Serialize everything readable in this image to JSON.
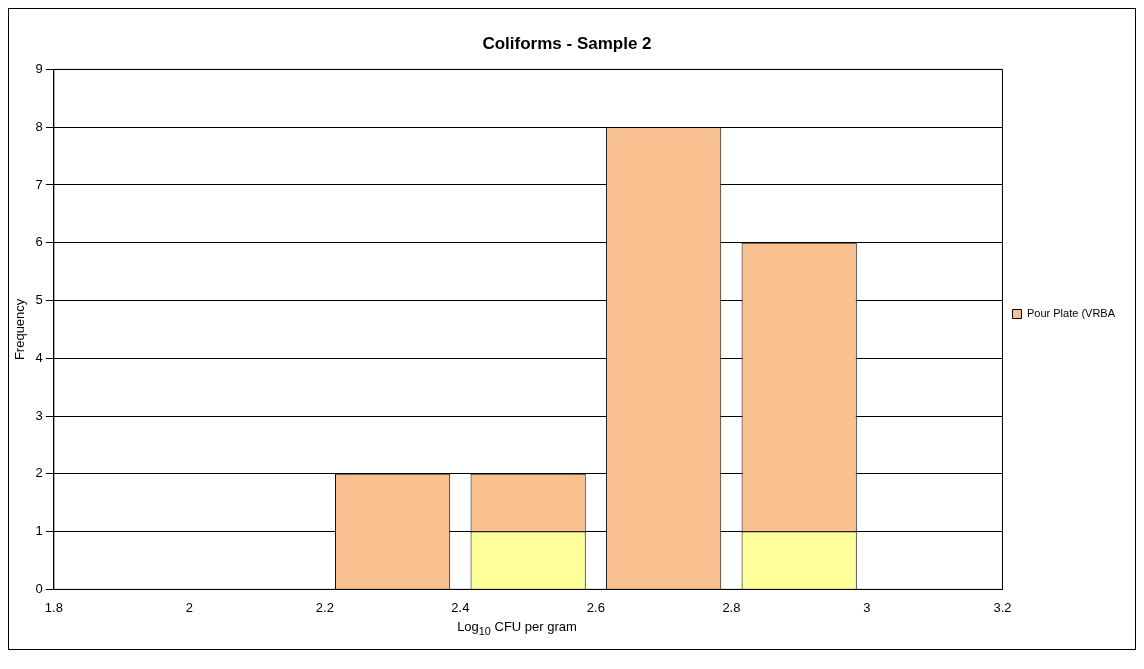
{
  "chart_data": {
    "type": "bar",
    "title": "Coliforms - Sample 2",
    "xlabel": "Log$_{10}$ CFU per gram",
    "ylabel": "Frequency",
    "x": [
      2.3,
      2.5,
      2.7,
      2.9
    ],
    "stacked": true,
    "series": [
      {
        "color": "#ffff99",
        "values": [
          0,
          1,
          0,
          1
        ]
      },
      {
        "name": "Pour Plate (VRBA",
        "color": "#f9c090",
        "values": [
          2,
          1,
          8,
          5
        ]
      }
    ],
    "xlim": [
      1.8,
      3.2
    ],
    "xticks": [
      1.8,
      2,
      2.2,
      2.4,
      2.6,
      2.8,
      3,
      3.2
    ],
    "ylim": [
      0,
      9
    ],
    "yticks": [
      0,
      1,
      2,
      3,
      4,
      5,
      6,
      7,
      8,
      9
    ],
    "grid": "y",
    "legend": "right"
  }
}
